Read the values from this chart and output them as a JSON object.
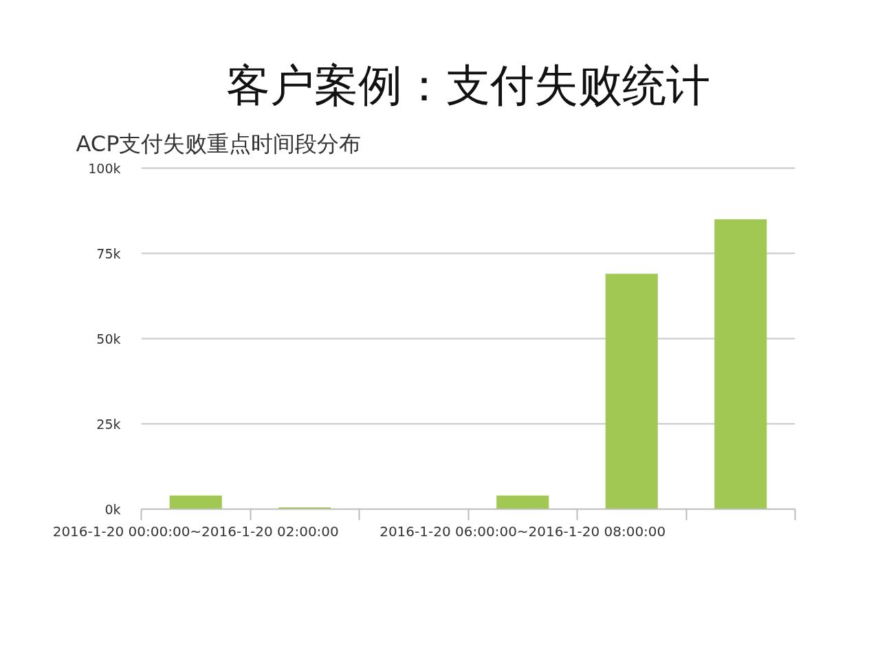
{
  "chart_data": {
    "type": "bar",
    "title": "客户案例：支付失败统计",
    "subtitle": "ACP支付失败重点时间段分布",
    "categories": [
      "2016-1-20 00:00:00~2016-1-20 02:00:00",
      null,
      null,
      "2016-1-20 06:00:00~2016-1-20 08:00:00",
      null,
      null
    ],
    "values": [
      4000,
      500,
      0,
      4000,
      69000,
      85000
    ],
    "color": "#a0c853",
    "ylim": [
      0,
      100000
    ],
    "yticks": [
      {
        "value": 0,
        "label": "0k"
      },
      {
        "value": 25000,
        "label": "25k"
      },
      {
        "value": 50000,
        "label": "50k"
      },
      {
        "value": 75000,
        "label": "75k"
      },
      {
        "value": 100000,
        "label": "100k"
      }
    ],
    "grid": "y"
  }
}
